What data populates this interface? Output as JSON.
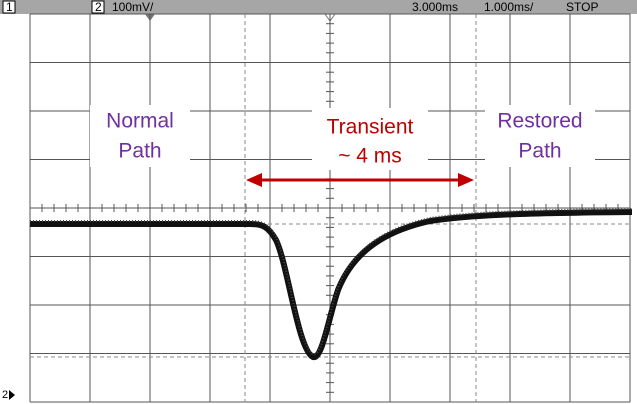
{
  "status_bar": {
    "channel_1": "1",
    "channel_2": "2",
    "volts_per_div": "100mV/",
    "time_offset": "3.000ms",
    "time_per_div": "1.000ms/",
    "run_state": "STOP"
  },
  "annotations": {
    "normal": [
      "Normal",
      "Path"
    ],
    "transient": [
      "Transient",
      "~ 4 ms"
    ],
    "restored": [
      "Restored",
      "Path"
    ]
  },
  "ground_marker": "2"
}
